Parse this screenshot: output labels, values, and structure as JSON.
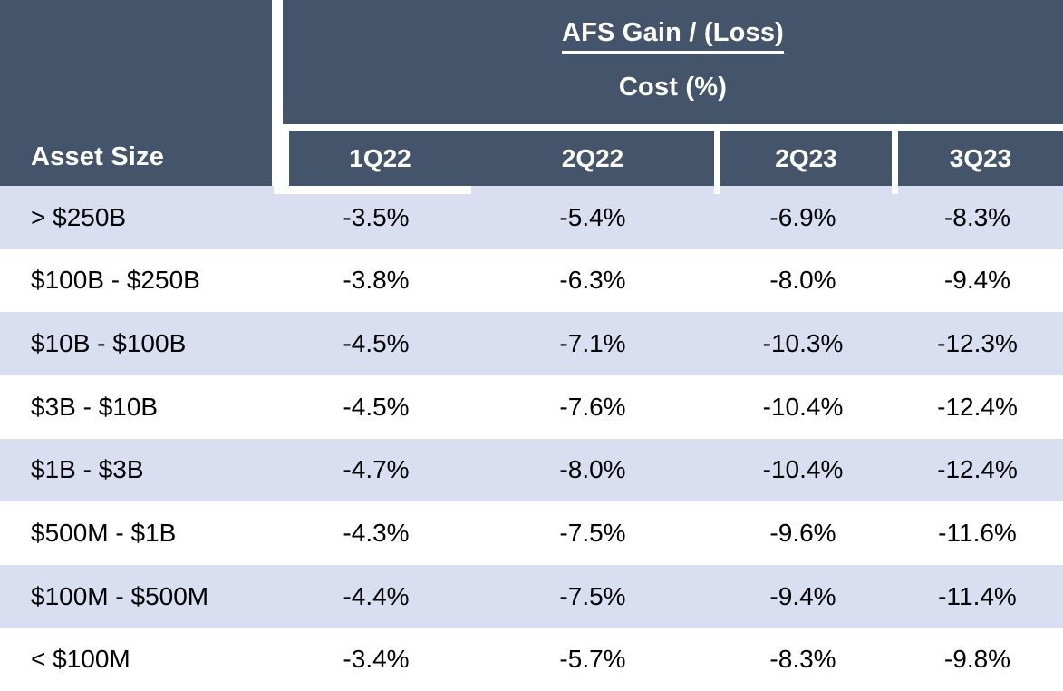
{
  "table": {
    "corner_header": "Asset Size",
    "group_header": {
      "line1": "AFS Gain / (Loss)",
      "line2": "Cost (%)"
    },
    "columns": [
      "1Q22",
      "2Q22",
      "2Q23",
      "3Q23"
    ],
    "rows": [
      {
        "label": "> $250B",
        "values": [
          "-3.5%",
          "-5.4%",
          "-6.9%",
          "-8.3%"
        ]
      },
      {
        "label": "$100B - $250B",
        "values": [
          "-3.8%",
          "-6.3%",
          "-8.0%",
          "-9.4%"
        ]
      },
      {
        "label": "$10B - $100B",
        "values": [
          "-4.5%",
          "-7.1%",
          "-10.3%",
          "-12.3%"
        ]
      },
      {
        "label": "$3B - $10B",
        "values": [
          "-4.5%",
          "-7.6%",
          "-10.4%",
          "-12.4%"
        ]
      },
      {
        "label": "$1B - $3B",
        "values": [
          "-4.7%",
          "-8.0%",
          "-10.4%",
          "-12.4%"
        ]
      },
      {
        "label": "$500M - $1B",
        "values": [
          "-4.3%",
          "-7.5%",
          "-9.6%",
          "-11.6%"
        ]
      },
      {
        "label": "$100M - $500M",
        "values": [
          "-4.4%",
          "-7.5%",
          "-9.4%",
          "-11.4%"
        ]
      },
      {
        "label": "< $100M",
        "values": [
          "-3.4%",
          "-5.7%",
          "-8.3%",
          "-9.8%"
        ]
      }
    ]
  },
  "colors": {
    "header_bg": "#44546A",
    "banded_row_bg": "#D9DFF1",
    "header_text": "#FFFFFF",
    "body_text": "#000000"
  },
  "chart_data": {
    "type": "table",
    "title": "AFS Gain / (Loss) Cost (%)",
    "row_label_header": "Asset Size",
    "columns": [
      "1Q22",
      "2Q22",
      "2Q23",
      "3Q23"
    ],
    "row_labels": [
      "> $250B",
      "$100B - $250B",
      "$10B - $100B",
      "$3B - $10B",
      "$1B - $3B",
      "$500M - $1B",
      "$100M - $500M",
      "< $100M"
    ],
    "values_pct": [
      [
        -3.5,
        -5.4,
        -6.9,
        -8.3
      ],
      [
        -3.8,
        -6.3,
        -8.0,
        -9.4
      ],
      [
        -4.5,
        -7.1,
        -10.3,
        -12.3
      ],
      [
        -4.5,
        -7.6,
        -10.4,
        -12.4
      ],
      [
        -4.7,
        -8.0,
        -10.4,
        -12.4
      ],
      [
        -4.3,
        -7.5,
        -9.6,
        -11.6
      ],
      [
        -4.4,
        -7.5,
        -9.4,
        -11.4
      ],
      [
        -3.4,
        -5.7,
        -8.3,
        -9.8
      ]
    ]
  }
}
